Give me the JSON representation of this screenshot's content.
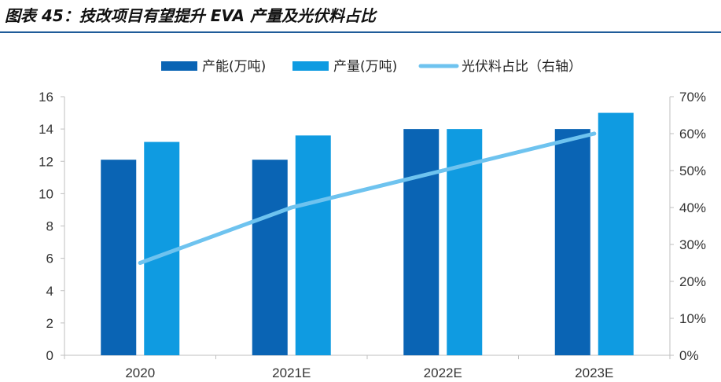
{
  "title": "图表 45：技改项目有望提升 EVA 产量及光伏料占比",
  "chart_data": {
    "type": "bar",
    "categories": [
      "2020",
      "2021E",
      "2022E",
      "2023E"
    ],
    "series": [
      {
        "name": "产能(万吨)",
        "type": "bar",
        "axis": "left",
        "color": "#0a64b4",
        "values": [
          12.1,
          12.1,
          14.0,
          14.0
        ]
      },
      {
        "name": "产量(万吨)",
        "type": "bar",
        "axis": "left",
        "color": "#0f9be1",
        "values": [
          13.2,
          13.6,
          14.0,
          15.0
        ]
      },
      {
        "name": "光伏料占比（右轴）",
        "type": "line",
        "axis": "right",
        "color": "#6ec3ef",
        "values": [
          25,
          40,
          50,
          60
        ]
      }
    ],
    "ylim": [
      0,
      16
    ],
    "yticks": [
      0,
      2,
      4,
      6,
      8,
      10,
      12,
      14,
      16
    ],
    "y2lim": [
      0,
      70
    ],
    "y2ticks": [
      "0%",
      "10%",
      "20%",
      "30%",
      "40%",
      "50%",
      "60%",
      "70%"
    ],
    "legend_position": "top-center",
    "grid": false
  }
}
